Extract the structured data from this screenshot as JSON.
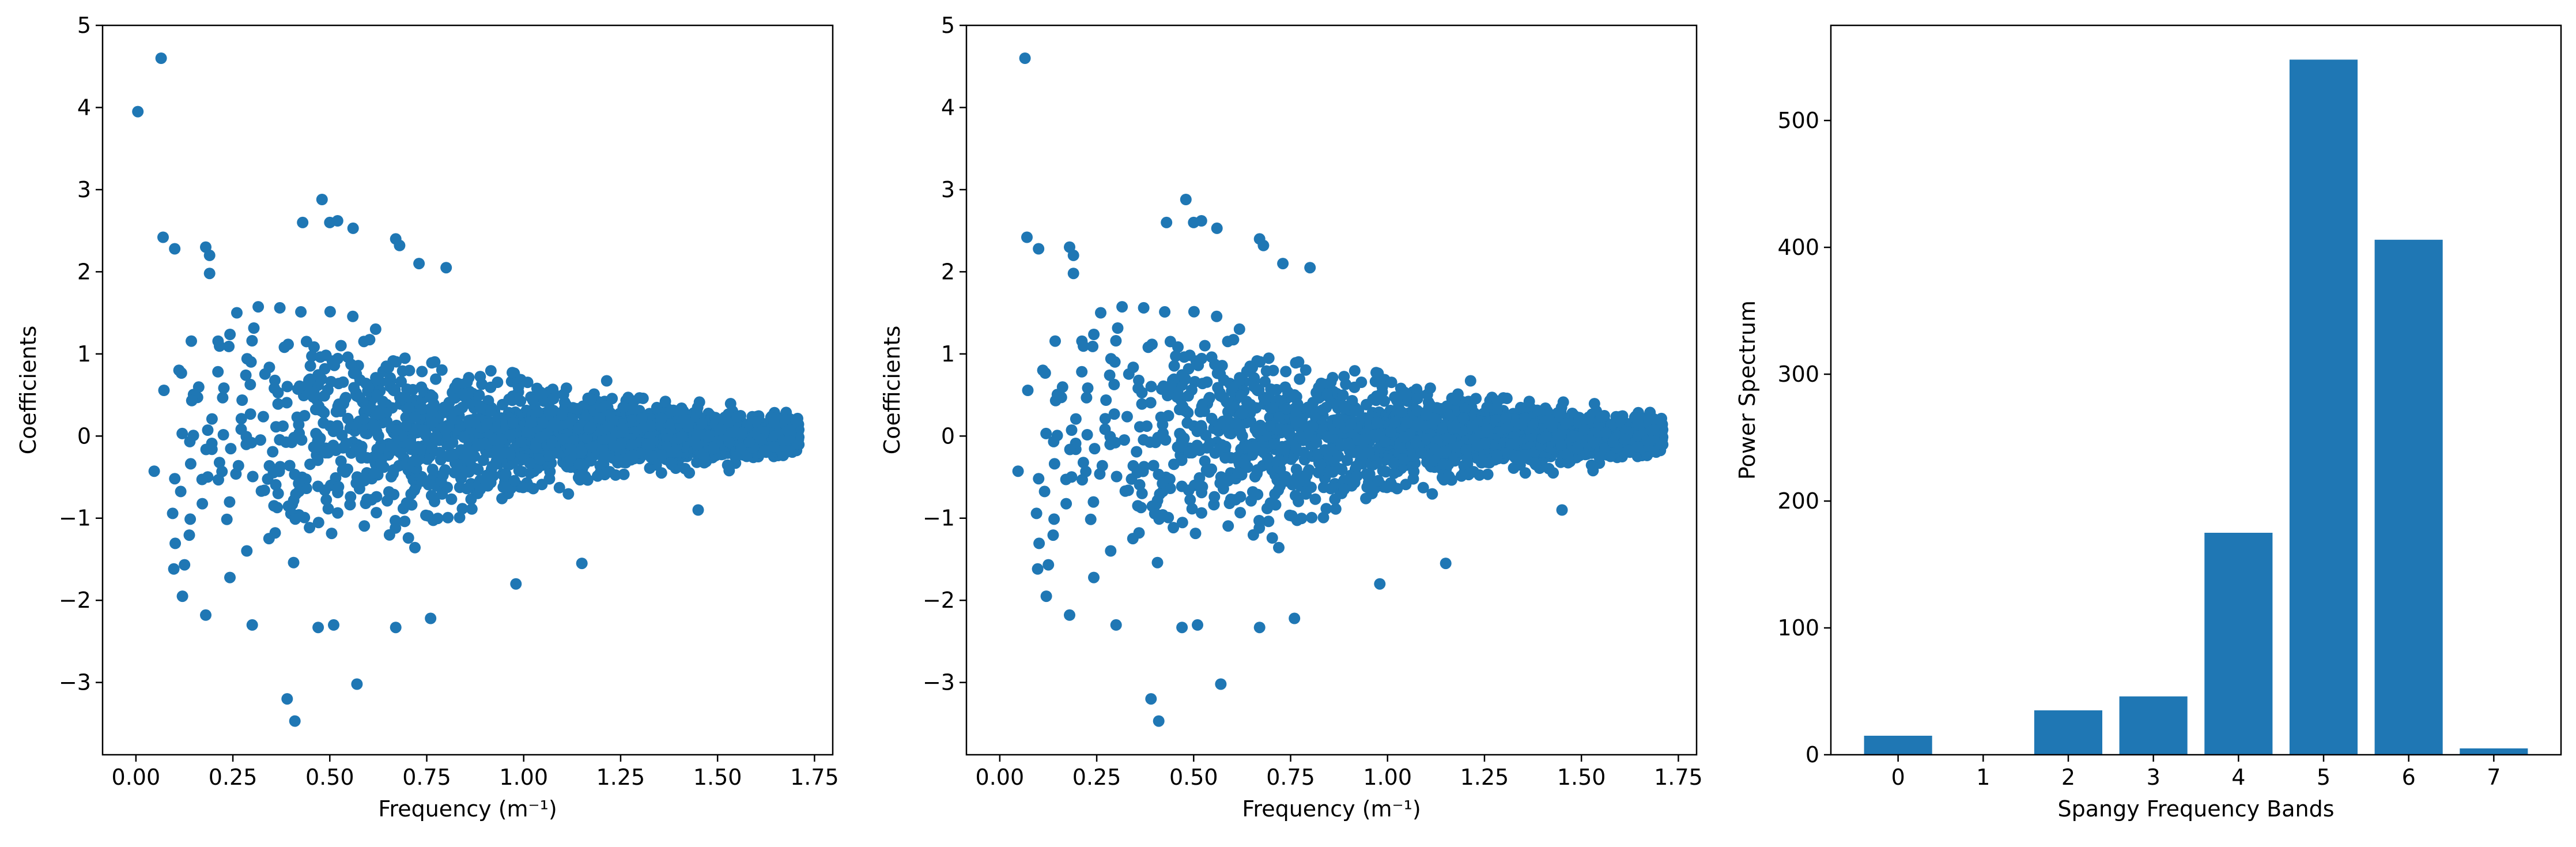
{
  "chart_data": [
    {
      "type": "scatter",
      "title": "",
      "xlabel": "Frequency (m⁻¹)",
      "ylabel": "Coefficients",
      "xlim": [
        -0.086,
        1.797
      ],
      "ylim": [
        -3.88,
        5.0
      ],
      "xticks": [
        "0.00",
        "0.25",
        "0.50",
        "0.75",
        "1.00",
        "1.25",
        "1.50",
        "1.75"
      ],
      "yticks": [
        "−3",
        "−2",
        "−1",
        "0",
        "1",
        "2",
        "3",
        "4",
        "5"
      ],
      "grid": false,
      "color": "#1f77b4",
      "point_count_estimate": 2200,
      "envelope": [
        {
          "x": 0.05,
          "spread": 1.4
        },
        {
          "x": 0.25,
          "spread": 1.25
        },
        {
          "x": 0.5,
          "spread": 1.0
        },
        {
          "x": 0.75,
          "spread": 0.75
        },
        {
          "x": 1.0,
          "spread": 0.5
        },
        {
          "x": 1.25,
          "spread": 0.32
        },
        {
          "x": 1.5,
          "spread": 0.22
        },
        {
          "x": 1.7,
          "spread": 0.16
        }
      ],
      "notable_points": [
        {
          "x": 0.005,
          "y": 3.95
        },
        {
          "x": 0.065,
          "y": 4.6
        },
        {
          "x": 0.07,
          "y": 2.42
        },
        {
          "x": 0.1,
          "y": 2.28
        },
        {
          "x": 0.18,
          "y": 2.3
        },
        {
          "x": 0.19,
          "y": 2.2
        },
        {
          "x": 0.19,
          "y": 1.98
        },
        {
          "x": 0.43,
          "y": 2.6
        },
        {
          "x": 0.48,
          "y": 2.88
        },
        {
          "x": 0.5,
          "y": 2.6
        },
        {
          "x": 0.52,
          "y": 2.62
        },
        {
          "x": 0.56,
          "y": 2.53
        },
        {
          "x": 0.67,
          "y": 2.4
        },
        {
          "x": 0.68,
          "y": 2.32
        },
        {
          "x": 0.73,
          "y": 2.1
        },
        {
          "x": 0.8,
          "y": 2.05
        },
        {
          "x": 0.39,
          "y": -3.2
        },
        {
          "x": 0.41,
          "y": -3.47
        },
        {
          "x": 0.57,
          "y": -3.02
        },
        {
          "x": 0.67,
          "y": -2.33
        },
        {
          "x": 0.47,
          "y": -2.33
        },
        {
          "x": 0.51,
          "y": -2.3
        },
        {
          "x": 0.3,
          "y": -2.3
        },
        {
          "x": 0.18,
          "y": -2.18
        },
        {
          "x": 0.12,
          "y": -1.95
        },
        {
          "x": 0.76,
          "y": -2.22
        },
        {
          "x": 0.98,
          "y": -1.8
        },
        {
          "x": 1.15,
          "y": -1.55
        },
        {
          "x": 1.45,
          "y": -0.9
        }
      ]
    },
    {
      "type": "scatter",
      "title": "",
      "xlabel": "Frequency (m⁻¹)",
      "ylabel": "Coefficients",
      "xlim": [
        -0.086,
        1.797
      ],
      "ylim": [
        -3.88,
        5.0
      ],
      "xticks": [
        "0.00",
        "0.25",
        "0.50",
        "0.75",
        "1.00",
        "1.25",
        "1.50",
        "1.75"
      ],
      "yticks": [
        "−3",
        "−2",
        "−1",
        "0",
        "1",
        "2",
        "3",
        "4",
        "5"
      ],
      "grid": false,
      "color": "#1f77b4",
      "point_count_estimate": 2200,
      "envelope": [
        {
          "x": 0.05,
          "spread": 1.4
        },
        {
          "x": 0.25,
          "spread": 1.25
        },
        {
          "x": 0.5,
          "spread": 1.0
        },
        {
          "x": 0.75,
          "spread": 0.75
        },
        {
          "x": 1.0,
          "spread": 0.5
        },
        {
          "x": 1.25,
          "spread": 0.32
        },
        {
          "x": 1.5,
          "spread": 0.22
        },
        {
          "x": 1.7,
          "spread": 0.16
        }
      ],
      "notable_points": [
        {
          "x": 0.065,
          "y": 4.6
        },
        {
          "x": 0.07,
          "y": 2.42
        },
        {
          "x": 0.1,
          "y": 2.28
        },
        {
          "x": 0.18,
          "y": 2.3
        },
        {
          "x": 0.19,
          "y": 2.2
        },
        {
          "x": 0.19,
          "y": 1.98
        },
        {
          "x": 0.43,
          "y": 2.6
        },
        {
          "x": 0.48,
          "y": 2.88
        },
        {
          "x": 0.5,
          "y": 2.6
        },
        {
          "x": 0.52,
          "y": 2.62
        },
        {
          "x": 0.56,
          "y": 2.53
        },
        {
          "x": 0.67,
          "y": 2.4
        },
        {
          "x": 0.68,
          "y": 2.32
        },
        {
          "x": 0.73,
          "y": 2.1
        },
        {
          "x": 0.8,
          "y": 2.05
        },
        {
          "x": 0.39,
          "y": -3.2
        },
        {
          "x": 0.41,
          "y": -3.47
        },
        {
          "x": 0.57,
          "y": -3.02
        },
        {
          "x": 0.67,
          "y": -2.33
        },
        {
          "x": 0.47,
          "y": -2.33
        },
        {
          "x": 0.51,
          "y": -2.3
        },
        {
          "x": 0.3,
          "y": -2.3
        },
        {
          "x": 0.18,
          "y": -2.18
        },
        {
          "x": 0.12,
          "y": -1.95
        },
        {
          "x": 0.76,
          "y": -2.22
        },
        {
          "x": 0.98,
          "y": -1.8
        },
        {
          "x": 1.15,
          "y": -1.55
        },
        {
          "x": 1.45,
          "y": -0.9
        }
      ]
    },
    {
      "type": "bar",
      "title": "",
      "xlabel": "Spangy Frequency Bands",
      "ylabel": "Power Spectrum",
      "categories": [
        "0",
        "1",
        "2",
        "3",
        "4",
        "5",
        "6",
        "7"
      ],
      "values": [
        15,
        0,
        35,
        46,
        175,
        548,
        406,
        5
      ],
      "ylim": [
        0,
        575
      ],
      "yticks": [
        "0",
        "100",
        "200",
        "300",
        "400",
        "500"
      ],
      "grid": false,
      "color": "#1f77b4"
    }
  ]
}
